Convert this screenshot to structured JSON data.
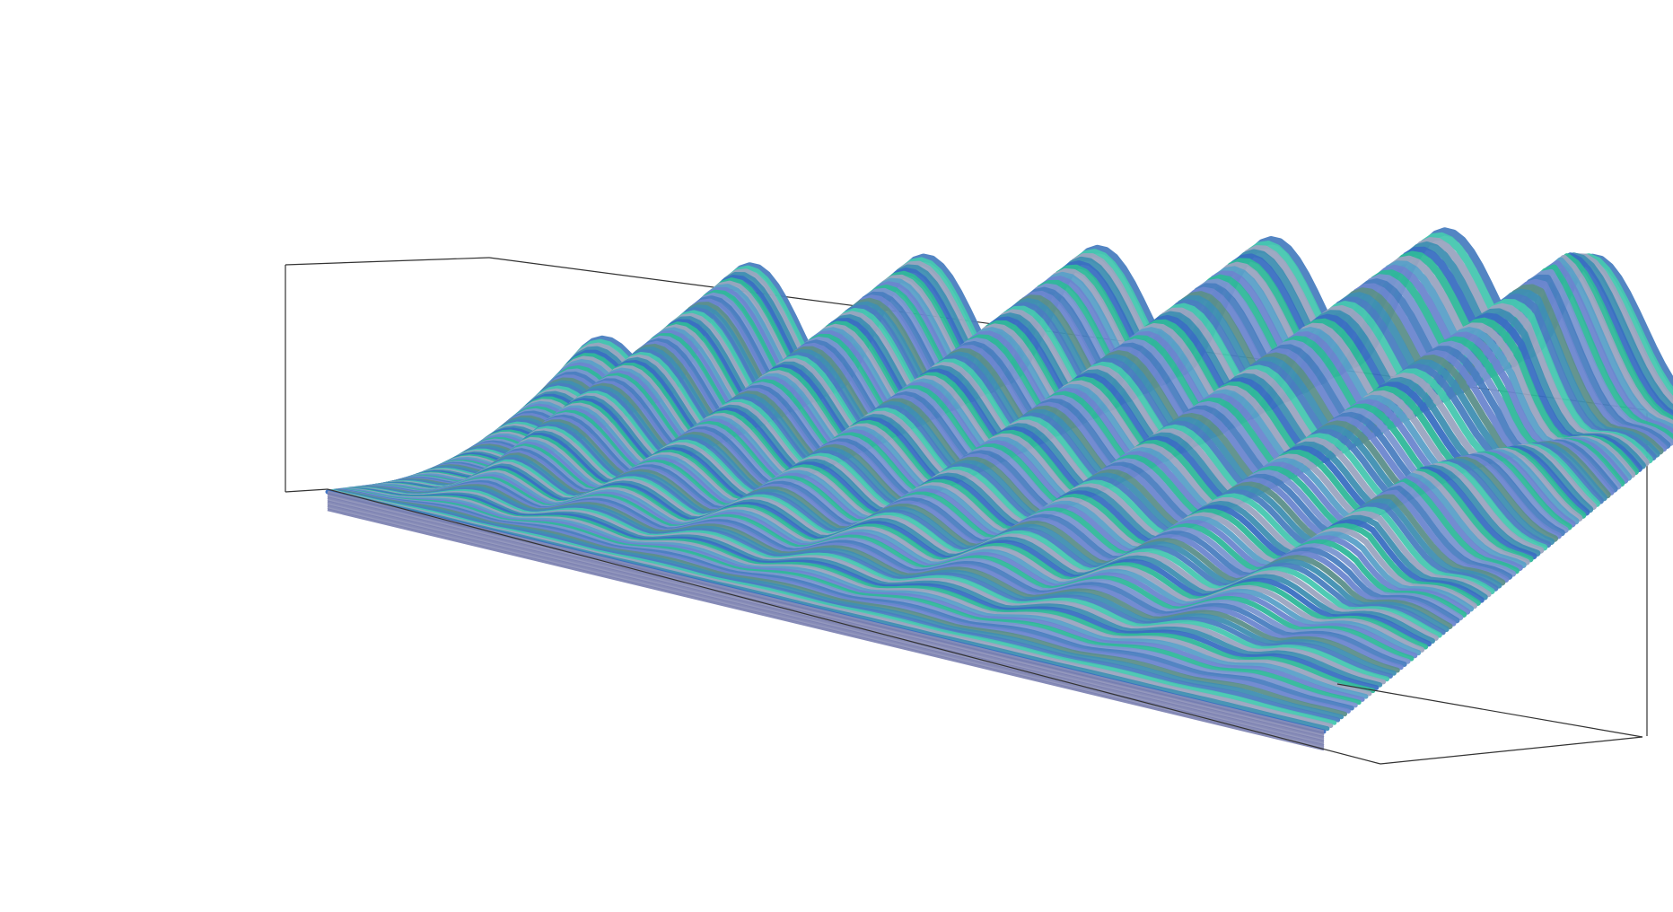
{
  "chart_data": {
    "type": "surface-3d",
    "title": "",
    "xlabel": "",
    "ylabel": "",
    "zlabel": "",
    "axes_visible": false,
    "grid": false,
    "legend": "none",
    "bounding_box": true,
    "box_color": "#333333",
    "surface": {
      "x_range": [
        0,
        1
      ],
      "y_range": [
        0,
        1
      ],
      "z_range": [
        0,
        1
      ],
      "rows": 110,
      "ridge_count": 7,
      "relative_height": {
        "back_edge": 0.85,
        "front_edge": 0.0
      }
    },
    "colors": {
      "palette": [
        "#4a7ec0",
        "#5aa0c8",
        "#3f8fb2",
        "#7a96d0",
        "#9aa4c0",
        "#5c8f8a",
        "#2fb89a",
        "#46c7b0",
        "#6b86cf",
        "#3a6fc2"
      ],
      "front_stripe": "#7a7fb0"
    }
  }
}
